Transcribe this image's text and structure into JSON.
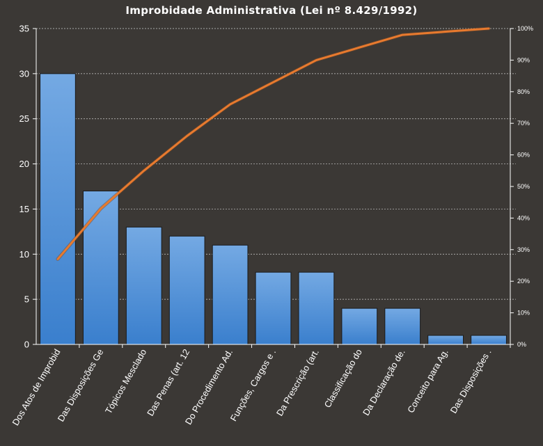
{
  "chart_data": {
    "type": "bar",
    "title": "Improbidade Administrativa  (Lei nº 8.429/1992)",
    "categories": [
      "Dos Atos de Improbid",
      "Das Disposições Ge",
      "Tópicos Mesclado",
      "Das Penas (art. 12",
      "Do Procedimento Ad.",
      "Funções, Cargos e .",
      "Da Prescrição (art.",
      "Classificação do",
      "Da Declaração de.",
      "Conceito para Ag.",
      "Das Disposições ."
    ],
    "values": [
      30,
      17,
      13,
      12,
      11,
      8,
      8,
      4,
      4,
      1,
      1
    ],
    "cumulative_percent": [
      27,
      43,
      55,
      66,
      76,
      83,
      90,
      94,
      98,
      99,
      100
    ],
    "ylim": [
      0,
      35
    ],
    "yticks": [
      0,
      5,
      10,
      15,
      20,
      25,
      30,
      35
    ],
    "y2lim": [
      0,
      100
    ],
    "y2ticks": [
      "0%",
      "10%",
      "20%",
      "30%",
      "40%",
      "50%",
      "60%",
      "70%",
      "80%",
      "90%",
      "100%"
    ],
    "grid": true,
    "colors": {
      "background": "#3b3835",
      "bar_top": "#74a9e3",
      "bar_bottom": "#3a7fcd",
      "bar_border": "#1a1a1a",
      "line": "#e87a2e",
      "grid": "#d0d0d0",
      "axis": "#ffffff"
    }
  }
}
